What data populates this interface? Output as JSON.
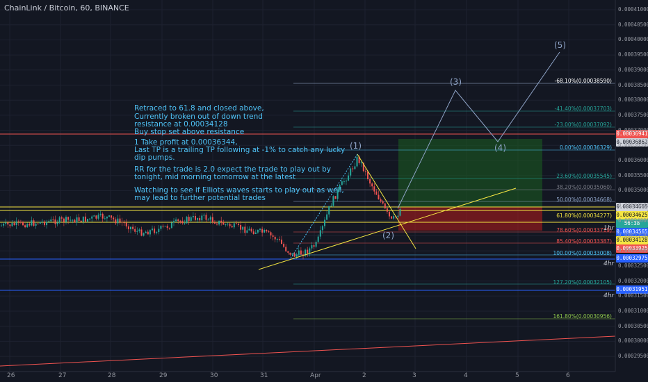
{
  "header": {
    "title": "ChainLink / Bitcoin, 60, BINANCE"
  },
  "notes": [
    "Retraced to 61.8 and closed above,",
    "Currently broken out of down trend",
    "resistance at 0.00034128",
    "Buy stop set above resistance",
    "",
    "1 Take profit at 0.00036344,",
    "Last TP is a trailing TP following at -1% to catch any lucky",
    "dip pumps.",
    "",
    "RR for the trade is 2.0 expect the trade to play out by",
    "tonight, mid morning tomorrow at the latest",
    "",
    "Watching to see if Elliots waves starts to play out as well,",
    "may lead to further potential trades"
  ],
  "y_axis": {
    "ticks": [
      "0.00041000",
      "0.00040500",
      "0.00040000",
      "0.00039500",
      "0.00039000",
      "0.00038500",
      "0.00038000",
      "0.00037500",
      "0.00037000",
      "0.00036500",
      "0.00036000",
      "0.00035500",
      "0.00035000",
      "0.00034500",
      "0.00034000",
      "0.00033500",
      "0.00033000",
      "0.00032500",
      "0.00032000",
      "0.00031500",
      "0.00031000",
      "0.00030500",
      "0.00030000",
      "0.00029500"
    ]
  },
  "x_axis": {
    "ticks": [
      "26",
      "27",
      "28",
      "29",
      "30",
      "31",
      "Apr",
      "2",
      "3",
      "4",
      "5",
      "6"
    ]
  },
  "fib_levels": [
    {
      "label": "-68.10%(0.00038590)",
      "color": "#ffffff"
    },
    {
      "label": "-41.40%(0.00037703)",
      "color": "#26a69a"
    },
    {
      "label": "-23.00%(0.00037092)",
      "color": "#26a69a"
    },
    {
      "label": "0.00%(0.00036329)",
      "color": "#4fc3f7"
    },
    {
      "label": "23.60%(0.00035545)",
      "color": "#26a69a"
    },
    {
      "label": "38.20%(0.00035060)",
      "color": "#787b86"
    },
    {
      "label": "50.00%(0.00034668)",
      "color": "#8fa4c8"
    },
    {
      "label": "61.80%(0.00034277)",
      "color": "#f5e642"
    },
    {
      "label": "78.60%(0.00033719)",
      "color": "#ef5350"
    },
    {
      "label": "85.40%(0.00033387)",
      "color": "#ef5350"
    },
    {
      "label": "100.00%(0.00033008)",
      "color": "#4fc3f7"
    },
    {
      "label": "127.20%(0.00032105)",
      "color": "#26a69a"
    },
    {
      "label": "161.80%(0.00030956)",
      "color": "#8bc34a"
    }
  ],
  "price_tags": [
    {
      "label": "0.00036941",
      "bg": "#ef5350",
      "fg": "#ffffff"
    },
    {
      "label": "0.00036862",
      "bg": "#d1d4dc",
      "fg": "#131722"
    },
    {
      "label": "0.00034665",
      "bg": "#d1d4dc",
      "fg": "#131722"
    },
    {
      "label": "0.00034625",
      "bg": "#f5e642",
      "fg": "#131722"
    },
    {
      "label": "56:38",
      "bg": "#26a69a",
      "fg": "#ffffff"
    },
    {
      "label": "0.00034565",
      "bg": "#2962ff",
      "fg": "#ffffff"
    },
    {
      "label": "0.00034128",
      "bg": "#f5e642",
      "fg": "#131722"
    },
    {
      "label": "0.00033925",
      "bg": "#ef5350",
      "fg": "#ffffff"
    },
    {
      "label": "0.00032975",
      "bg": "#2962ff",
      "fg": "#ffffff"
    },
    {
      "label": "0.00031951",
      "bg": "#2962ff",
      "fg": "#ffffff"
    }
  ],
  "timeframe_tags": [
    "1hr",
    "4hr",
    "4hr"
  ],
  "waves": [
    "(1)",
    "(2)",
    "(3)",
    "(4)",
    "(5)"
  ],
  "colors": {
    "background": "#131722",
    "grid": "#1e2230",
    "candle_up": "#26a69a",
    "candle_down": "#ef5350",
    "support_yellow": "#f5e642",
    "resistance_red": "#ef5350",
    "line_blue": "#2962ff",
    "wave_path": "#8fa4c8"
  }
}
